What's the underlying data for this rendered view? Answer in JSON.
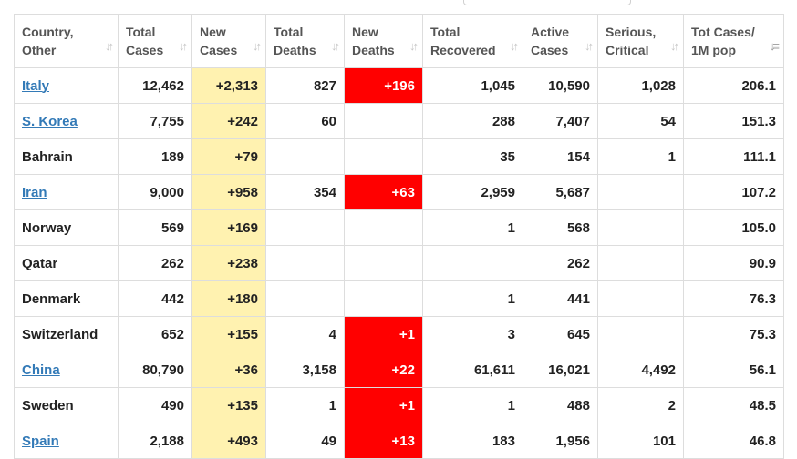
{
  "columns": [
    {
      "key": "country",
      "label": "Country, Other"
    },
    {
      "key": "total_cases",
      "label": "Total Cases"
    },
    {
      "key": "new_cases",
      "label": "New Cases"
    },
    {
      "key": "total_deaths",
      "label": "Total Deaths"
    },
    {
      "key": "new_deaths",
      "label": "New Deaths"
    },
    {
      "key": "total_recovered",
      "label": "Total Recovered"
    },
    {
      "key": "active_cases",
      "label": "Active Cases"
    },
    {
      "key": "serious_critical",
      "label": "Serious, Critical"
    },
    {
      "key": "tot_cases_1m_pop",
      "label": "Tot Cases/ 1M pop"
    }
  ],
  "sorted_column": "tot_cases_1m_pop",
  "colors": {
    "link": "#337ab7",
    "new_cases_highlight": "#fff2b0",
    "new_deaths_highlight": "#ff0000"
  },
  "rows": [
    {
      "country": "Italy",
      "link": true,
      "total_cases": "12,462",
      "new_cases": "+2,313",
      "total_deaths": "827",
      "new_deaths": "+196",
      "total_recovered": "1,045",
      "active_cases": "10,590",
      "serious_critical": "1,028",
      "tot_cases_1m_pop": "206.1"
    },
    {
      "country": "S. Korea",
      "link": true,
      "total_cases": "7,755",
      "new_cases": "+242",
      "total_deaths": "60",
      "new_deaths": "",
      "total_recovered": "288",
      "active_cases": "7,407",
      "serious_critical": "54",
      "tot_cases_1m_pop": "151.3"
    },
    {
      "country": "Bahrain",
      "link": false,
      "total_cases": "189",
      "new_cases": "+79",
      "total_deaths": "",
      "new_deaths": "",
      "total_recovered": "35",
      "active_cases": "154",
      "serious_critical": "1",
      "tot_cases_1m_pop": "111.1"
    },
    {
      "country": "Iran",
      "link": true,
      "total_cases": "9,000",
      "new_cases": "+958",
      "total_deaths": "354",
      "new_deaths": "+63",
      "total_recovered": "2,959",
      "active_cases": "5,687",
      "serious_critical": "",
      "tot_cases_1m_pop": "107.2"
    },
    {
      "country": "Norway",
      "link": false,
      "total_cases": "569",
      "new_cases": "+169",
      "total_deaths": "",
      "new_deaths": "",
      "total_recovered": "1",
      "active_cases": "568",
      "serious_critical": "",
      "tot_cases_1m_pop": "105.0"
    },
    {
      "country": "Qatar",
      "link": false,
      "total_cases": "262",
      "new_cases": "+238",
      "total_deaths": "",
      "new_deaths": "",
      "total_recovered": "",
      "active_cases": "262",
      "serious_critical": "",
      "tot_cases_1m_pop": "90.9"
    },
    {
      "country": "Denmark",
      "link": false,
      "total_cases": "442",
      "new_cases": "+180",
      "total_deaths": "",
      "new_deaths": "",
      "total_recovered": "1",
      "active_cases": "441",
      "serious_critical": "",
      "tot_cases_1m_pop": "76.3"
    },
    {
      "country": "Switzerland",
      "link": false,
      "total_cases": "652",
      "new_cases": "+155",
      "total_deaths": "4",
      "new_deaths": "+1",
      "total_recovered": "3",
      "active_cases": "645",
      "serious_critical": "",
      "tot_cases_1m_pop": "75.3"
    },
    {
      "country": "China",
      "link": true,
      "total_cases": "80,790",
      "new_cases": "+36",
      "total_deaths": "3,158",
      "new_deaths": "+22",
      "total_recovered": "61,611",
      "active_cases": "16,021",
      "serious_critical": "4,492",
      "tot_cases_1m_pop": "56.1"
    },
    {
      "country": "Sweden",
      "link": false,
      "total_cases": "490",
      "new_cases": "+135",
      "total_deaths": "1",
      "new_deaths": "+1",
      "total_recovered": "1",
      "active_cases": "488",
      "serious_critical": "2",
      "tot_cases_1m_pop": "48.5"
    },
    {
      "country": "Spain",
      "link": true,
      "total_cases": "2,188",
      "new_cases": "+493",
      "total_deaths": "49",
      "new_deaths": "+13",
      "total_recovered": "183",
      "active_cases": "1,956",
      "serious_critical": "101",
      "tot_cases_1m_pop": "46.8"
    }
  ]
}
